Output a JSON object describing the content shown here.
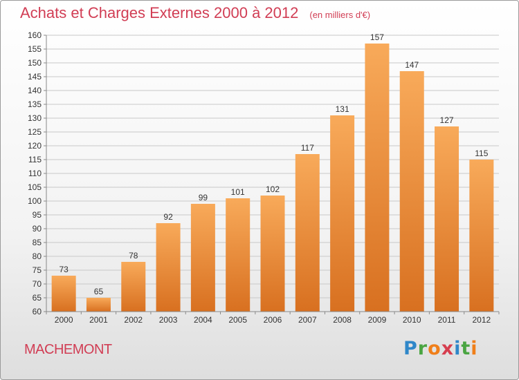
{
  "header": {
    "title": "Achats et Charges Externes 2000 à 2012",
    "subtitle": "(en milliers d'€)"
  },
  "footer": {
    "commune": "MACHEMONT",
    "brand": {
      "letters": [
        "P",
        "r",
        "o",
        "x",
        "i",
        "t",
        "i"
      ],
      "colors": [
        "#2f87c9",
        "#4aa542",
        "#f07f1a",
        "#d63e4f",
        "#2f87c9",
        "#4aa542",
        "#f07f1a"
      ]
    }
  },
  "chart_data": {
    "type": "bar",
    "categories": [
      "2000",
      "2001",
      "2002",
      "2003",
      "2004",
      "2005",
      "2006",
      "2007",
      "2008",
      "2009",
      "2010",
      "2011",
      "2012"
    ],
    "values": [
      73,
      65,
      78,
      92,
      99,
      101,
      102,
      117,
      131,
      157,
      147,
      127,
      115
    ],
    "xlabel": "",
    "ylabel": "",
    "ylim": [
      60,
      160
    ],
    "yticks": [
      60,
      65,
      70,
      75,
      80,
      85,
      90,
      95,
      100,
      105,
      110,
      115,
      120,
      125,
      130,
      135,
      140,
      145,
      150,
      155,
      160
    ],
    "grid": true,
    "legend": "none",
    "colors": {
      "bar_light": "#f8aa5a",
      "bar_dark": "#d87020",
      "grid": "#c8c8c8",
      "label": "#333333"
    }
  }
}
